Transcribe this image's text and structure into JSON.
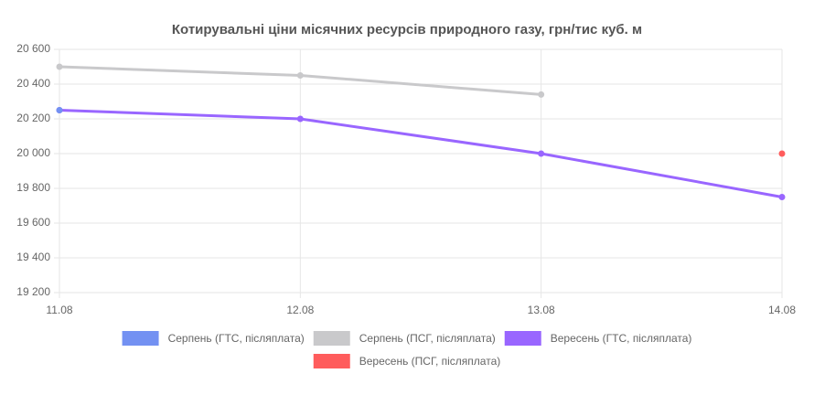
{
  "chart_data": {
    "type": "line",
    "title": "Котирувальні ціни місячних ресурсів природного газу, грн/тис куб. м",
    "categories": [
      "11.08",
      "12.08",
      "13.08",
      "14.08"
    ],
    "series": [
      {
        "name": "Серпень (ГТС, післяплата)",
        "color": "#7391f2",
        "values": [
          20250,
          null,
          null,
          null
        ]
      },
      {
        "name": "Серпень (ПСГ, післяплата)",
        "color": "#c9c9cb",
        "values": [
          20500,
          20450,
          20340,
          null
        ]
      },
      {
        "name": "Вересень (ГТС, післяплата)",
        "color": "#9966ff",
        "values": [
          20250,
          20200,
          20000,
          19750
        ]
      },
      {
        "name": "Вересень (ПСГ, післяплата)",
        "color": "#ff5c5c",
        "values": [
          null,
          null,
          null,
          20000
        ]
      }
    ],
    "ylim": [
      19200,
      20600
    ],
    "yticks": [
      {
        "value": 19200,
        "label": "19 200"
      },
      {
        "value": 19400,
        "label": "19 400"
      },
      {
        "value": 19600,
        "label": "19 600"
      },
      {
        "value": 19800,
        "label": "19 800"
      },
      {
        "value": 20000,
        "label": "20 000"
      },
      {
        "value": 20200,
        "label": "20 200"
      },
      {
        "value": 20400,
        "label": "20 400"
      },
      {
        "value": 20600,
        "label": "20 600"
      }
    ],
    "grid": true
  }
}
